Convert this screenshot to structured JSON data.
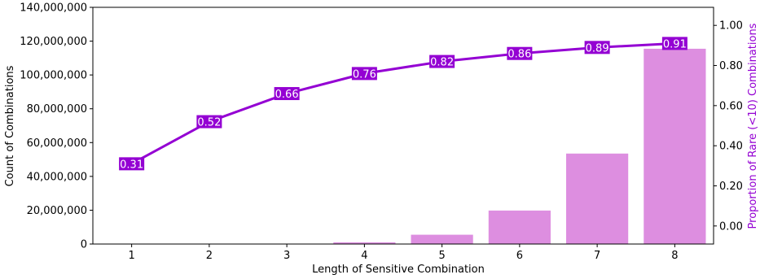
{
  "chart_data": {
    "type": "bar+line",
    "categories": [
      "1",
      "2",
      "3",
      "4",
      "5",
      "6",
      "7",
      "8"
    ],
    "bars": {
      "values": [
        0,
        0,
        0,
        1000000,
        5500000,
        19800000,
        53500000,
        115500000
      ],
      "color": "#dd8ee0"
    },
    "line": {
      "values": [
        0.31,
        0.52,
        0.66,
        0.76,
        0.82,
        0.86,
        0.89,
        0.91
      ],
      "labels": [
        "0.31",
        "0.52",
        "0.66",
        "0.76",
        "0.82",
        "0.86",
        "0.89",
        "0.91"
      ],
      "color": "#9400d3"
    },
    "xlabel": "Length of Sensitive Combination",
    "ylabel_left": "Count of Combinations",
    "ylabel_right": "Proportion of Rare (<10) Combinations",
    "ylim_left": [
      0,
      140000000
    ],
    "ylim_right": [
      -0.09,
      1.09
    ],
    "yticks_left": [
      {
        "value": 0,
        "label": "0"
      },
      {
        "value": 20000000,
        "label": "20,000,000"
      },
      {
        "value": 40000000,
        "label": "40,000,000"
      },
      {
        "value": 60000000,
        "label": "60,000,000"
      },
      {
        "value": 80000000,
        "label": "80,000,000"
      },
      {
        "value": 100000000,
        "label": "100,000,000"
      },
      {
        "value": 120000000,
        "label": "120,000,000"
      },
      {
        "value": 140000000,
        "label": "140,000,000"
      }
    ],
    "yticks_right": [
      {
        "value": 0.0,
        "label": "0.00"
      },
      {
        "value": 0.2,
        "label": "0.20"
      },
      {
        "value": 0.4,
        "label": "0.40"
      },
      {
        "value": 0.6,
        "label": "0.60"
      },
      {
        "value": 0.8,
        "label": "0.80"
      },
      {
        "value": 1.0,
        "label": "1.00"
      }
    ],
    "grid": false
  }
}
